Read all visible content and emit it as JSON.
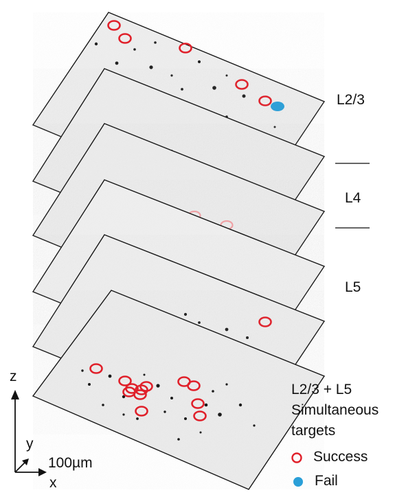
{
  "layer_labels": {
    "l23": "L2/3",
    "l4": "L4",
    "l5": "L5"
  },
  "simultaneous": {
    "line1": "L2/3 + L5",
    "line2": "Simultaneous",
    "line3": "targets"
  },
  "legend": {
    "success": "Success",
    "fail": "Fail"
  },
  "axes": {
    "z": "z",
    "y": "y",
    "x": "x",
    "scale": "100µm"
  },
  "colors": {
    "success_ring": "#e0202a",
    "success_ring_faint": "#f0a0a4",
    "fail_dot": "#2a9fd8",
    "frame": "#111111",
    "boundary": "#666666"
  },
  "legend_icons": {
    "success": "red-ring-icon",
    "fail": "blue-dot-icon"
  }
}
